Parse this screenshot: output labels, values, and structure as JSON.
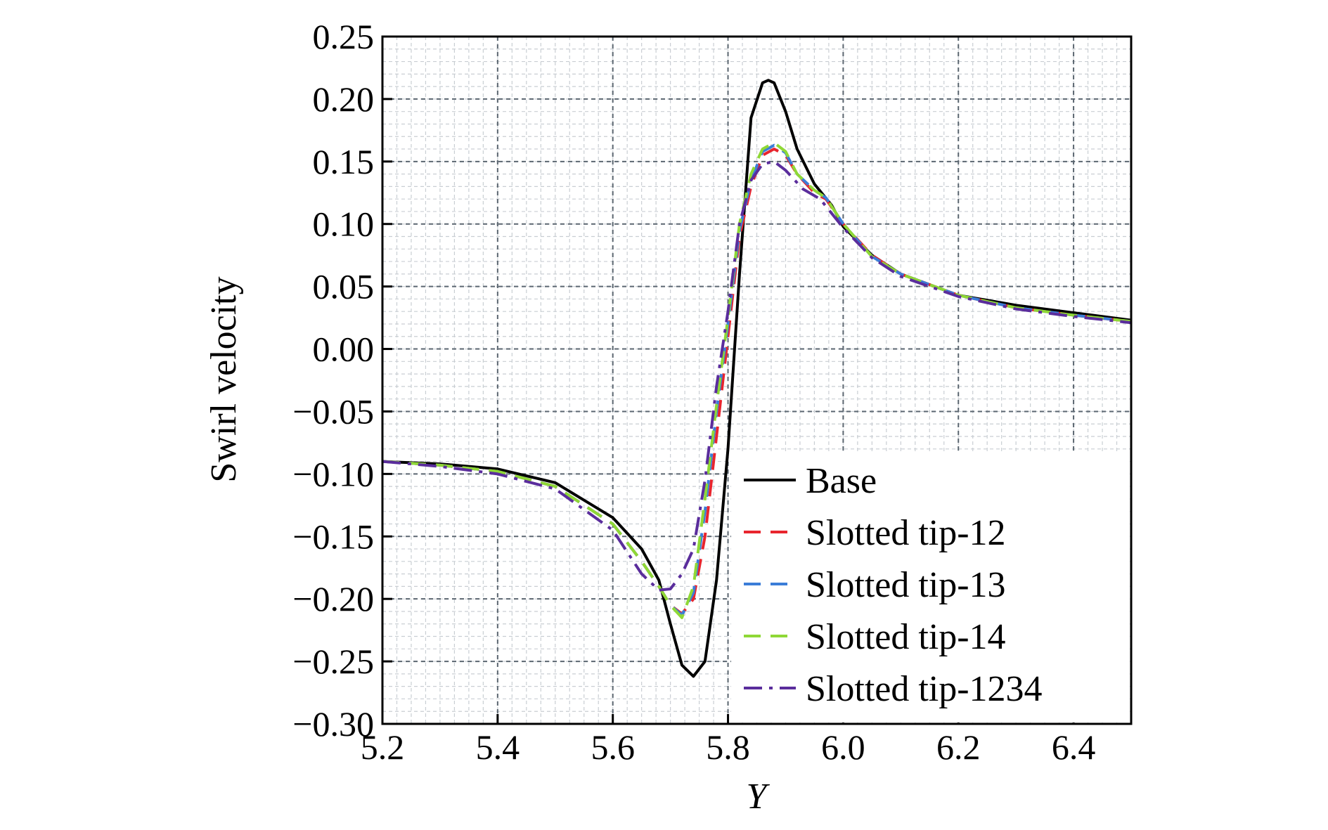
{
  "chart_data": {
    "type": "line",
    "xlabel": "Y",
    "ylabel": "Swirl velocity",
    "xlim": [
      5.2,
      6.5
    ],
    "ylim": [
      -0.3,
      0.25
    ],
    "x_ticks": [
      "5.2",
      "5.4",
      "5.6",
      "5.8",
      "6.0",
      "6.2",
      "6.4"
    ],
    "y_ticks": [
      "0.25",
      "0.20",
      "0.15",
      "0.10",
      "0.05",
      "0.00",
      "−0.05",
      "−0.10",
      "−0.15",
      "−0.20",
      "−0.25",
      "−0.30"
    ],
    "grid": true,
    "legend_position": "lower-right",
    "series": [
      {
        "name": "Base",
        "color": "#000000",
        "dash": "solid",
        "x": [
          5.2,
          5.3,
          5.4,
          5.5,
          5.6,
          5.65,
          5.68,
          5.7,
          5.72,
          5.74,
          5.76,
          5.78,
          5.8,
          5.82,
          5.84,
          5.86,
          5.87,
          5.88,
          5.9,
          5.92,
          5.95,
          5.98,
          6.0,
          6.05,
          6.1,
          6.2,
          6.3,
          6.4,
          6.5
        ],
        "y": [
          -0.09,
          -0.092,
          -0.096,
          -0.107,
          -0.135,
          -0.16,
          -0.185,
          -0.22,
          -0.253,
          -0.262,
          -0.25,
          -0.185,
          -0.08,
          0.06,
          0.185,
          0.213,
          0.215,
          0.213,
          0.19,
          0.16,
          0.132,
          0.115,
          0.098,
          0.075,
          0.06,
          0.043,
          0.035,
          0.029,
          0.023
        ]
      },
      {
        "name": "Slotted tip-12",
        "color": "#e8252e",
        "dash": "dashed",
        "x": [
          5.2,
          5.3,
          5.4,
          5.5,
          5.6,
          5.65,
          5.68,
          5.7,
          5.72,
          5.74,
          5.76,
          5.78,
          5.8,
          5.82,
          5.84,
          5.86,
          5.88,
          5.9,
          5.92,
          5.95,
          5.97,
          6.0,
          6.05,
          6.1,
          6.2,
          6.3,
          6.4,
          6.5
        ],
        "y": [
          -0.09,
          -0.093,
          -0.098,
          -0.11,
          -0.14,
          -0.17,
          -0.19,
          -0.205,
          -0.212,
          -0.2,
          -0.15,
          -0.07,
          0.01,
          0.09,
          0.13,
          0.155,
          0.16,
          0.155,
          0.14,
          0.125,
          0.12,
          0.1,
          0.075,
          0.06,
          0.043,
          0.033,
          0.027,
          0.022
        ]
      },
      {
        "name": "Slotted tip-13",
        "color": "#3b7dd8",
        "dash": "dashed",
        "x": [
          5.2,
          5.3,
          5.4,
          5.5,
          5.6,
          5.65,
          5.68,
          5.7,
          5.72,
          5.74,
          5.76,
          5.78,
          5.8,
          5.82,
          5.84,
          5.86,
          5.88,
          5.9,
          5.92,
          5.95,
          5.97,
          6.0,
          6.05,
          6.1,
          6.2,
          6.3,
          6.4,
          6.5
        ],
        "y": [
          -0.09,
          -0.093,
          -0.098,
          -0.11,
          -0.14,
          -0.17,
          -0.19,
          -0.205,
          -0.213,
          -0.195,
          -0.13,
          -0.05,
          0.02,
          0.095,
          0.135,
          0.158,
          0.163,
          0.157,
          0.14,
          0.127,
          0.121,
          0.1,
          0.074,
          0.06,
          0.043,
          0.033,
          0.027,
          0.022
        ]
      },
      {
        "name": "Slotted tip-14",
        "color": "#8fd836",
        "dash": "dashed",
        "x": [
          5.2,
          5.3,
          5.4,
          5.5,
          5.6,
          5.65,
          5.68,
          5.7,
          5.72,
          5.74,
          5.76,
          5.78,
          5.8,
          5.82,
          5.84,
          5.86,
          5.88,
          5.9,
          5.92,
          5.95,
          5.97,
          6.0,
          6.05,
          6.1,
          6.2,
          6.3,
          6.4,
          6.5
        ],
        "y": [
          -0.09,
          -0.093,
          -0.098,
          -0.11,
          -0.14,
          -0.17,
          -0.19,
          -0.205,
          -0.215,
          -0.19,
          -0.12,
          -0.045,
          0.025,
          0.1,
          0.14,
          0.16,
          0.165,
          0.158,
          0.14,
          0.127,
          0.121,
          0.1,
          0.074,
          0.06,
          0.043,
          0.033,
          0.027,
          0.022
        ]
      },
      {
        "name": "Slotted tip-1234",
        "color": "#5a2d9c",
        "dash": "dashdot",
        "x": [
          5.2,
          5.3,
          5.4,
          5.5,
          5.6,
          5.65,
          5.68,
          5.7,
          5.72,
          5.74,
          5.76,
          5.78,
          5.8,
          5.82,
          5.84,
          5.86,
          5.88,
          5.9,
          5.93,
          5.96,
          6.0,
          6.05,
          6.1,
          6.2,
          6.3,
          6.4,
          6.5
        ],
        "y": [
          -0.09,
          -0.094,
          -0.1,
          -0.112,
          -0.145,
          -0.18,
          -0.193,
          -0.192,
          -0.18,
          -0.16,
          -0.105,
          -0.03,
          0.03,
          0.1,
          0.135,
          0.148,
          0.15,
          0.143,
          0.128,
          0.12,
          0.097,
          0.073,
          0.058,
          0.042,
          0.032,
          0.026,
          0.021
        ]
      }
    ]
  }
}
